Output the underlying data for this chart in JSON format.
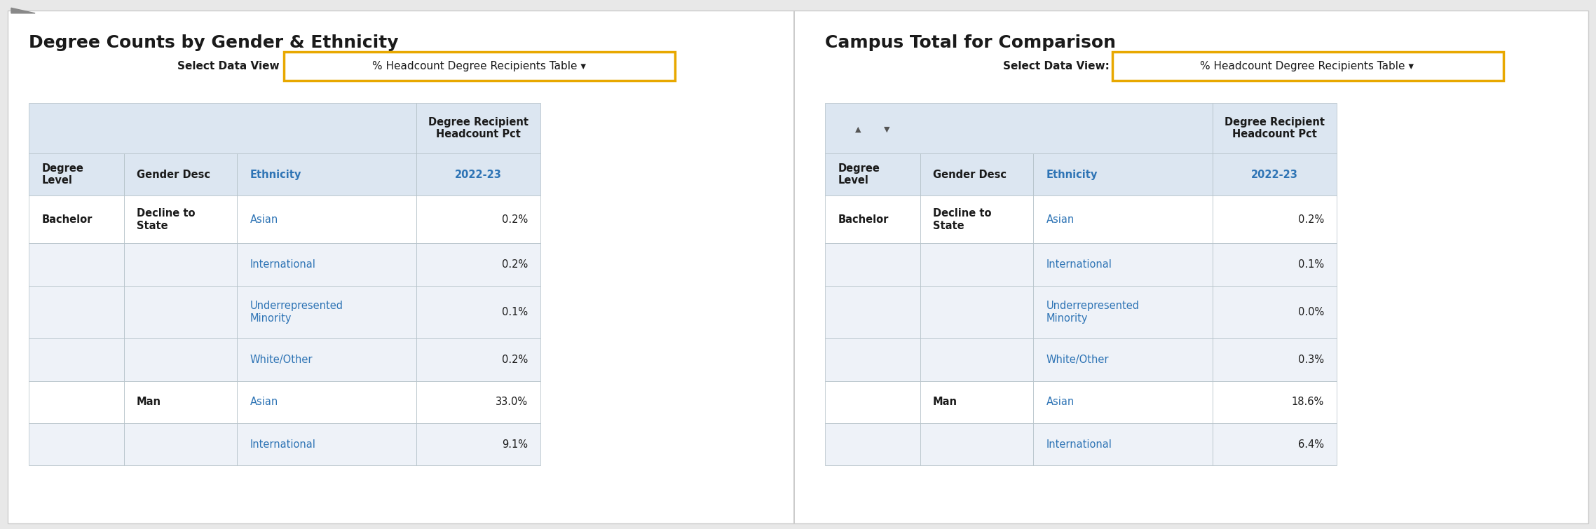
{
  "title_left": "Degree Counts by Gender & Ethnicity",
  "title_right": "Campus Total for Comparison",
  "select_label": "Select Data View",
  "select_label_right": "Select Data View:",
  "dropdown_text": "% Headcount Degree Recipients Table ▾",
  "bg_color": "#f0f0f0",
  "panel_bg": "#ffffff",
  "table_header_bg": "#dce6f1",
  "table_row_bg1": "#ffffff",
  "table_row_bg2": "#eef2f8",
  "blue_text": "#2e74b5",
  "dark_text": "#1a1a1a",
  "gray_text": "#555555",
  "dropdown_border": "#e8a800",
  "table_col1": "Degree\nLevel",
  "table_col2": "Gender Desc",
  "table_col3": "Ethnicity",
  "left_rows": [
    [
      "Bachelor",
      "Decline to\nState",
      "Asian",
      "0.2%"
    ],
    [
      "",
      "",
      "International",
      "0.2%"
    ],
    [
      "",
      "",
      "Underrepresented\nMinority",
      "0.1%"
    ],
    [
      "",
      "",
      "White/Other",
      "0.2%"
    ],
    [
      "",
      "Man",
      "Asian",
      "33.0%"
    ],
    [
      "",
      "",
      "International",
      "9.1%"
    ]
  ],
  "right_rows": [
    [
      "Bachelor",
      "Decline to\nState",
      "Asian",
      "0.2%"
    ],
    [
      "",
      "",
      "International",
      "0.1%"
    ],
    [
      "",
      "",
      "Underrepresented\nMinority",
      "0.0%"
    ],
    [
      "",
      "",
      "White/Other",
      "0.3%"
    ],
    [
      "",
      "Man",
      "Asian",
      "18.6%"
    ],
    [
      "",
      "",
      "International",
      "6.4%"
    ]
  ],
  "title_fontsize": 18,
  "label_fontsize": 11,
  "cell_fontsize": 11,
  "header_fontsize": 11
}
